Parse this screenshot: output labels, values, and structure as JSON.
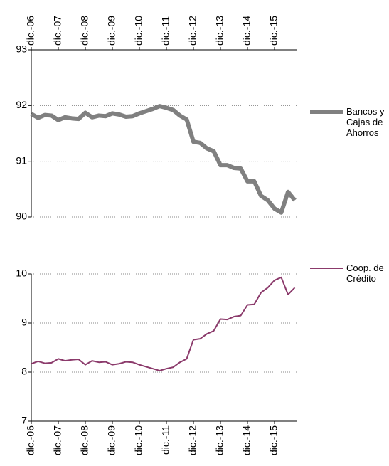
{
  "chart_data": [
    {
      "type": "line",
      "categories": [
        "dic.-06",
        null,
        null,
        null,
        "dic.-07",
        null,
        null,
        null,
        "dic.-08",
        null,
        null,
        null,
        "dic.-09",
        null,
        null,
        null,
        "dic.-10",
        null,
        null,
        null,
        "dic.-11",
        null,
        null,
        null,
        "dic.-12",
        null,
        null,
        null,
        "dic.-13",
        null,
        null,
        null,
        "dic.-14",
        null,
        null,
        null,
        "dic.-15",
        null,
        null,
        null
      ],
      "series": [
        {
          "name": "Bancos y Cajas de Ahorros",
          "color": "#808080",
          "values": [
            91.85,
            91.78,
            91.83,
            91.82,
            91.74,
            91.79,
            91.77,
            91.76,
            91.87,
            91.79,
            91.82,
            91.81,
            91.86,
            91.84,
            91.8,
            91.81,
            91.86,
            91.9,
            91.94,
            91.99,
            91.96,
            91.92,
            91.82,
            91.75,
            91.35,
            91.33,
            91.23,
            91.18,
            90.93,
            90.93,
            90.88,
            90.87,
            90.64,
            90.64,
            90.38,
            90.3,
            90.15,
            90.08,
            90.45,
            90.3
          ]
        }
      ],
      "ylim": [
        90,
        93
      ],
      "yticks": [
        90,
        91,
        92,
        93
      ],
      "grid": true,
      "legend": "right",
      "x_axis": "top"
    },
    {
      "type": "line",
      "categories": [
        "dic.-06",
        null,
        null,
        null,
        "dic.-07",
        null,
        null,
        null,
        "dic.-08",
        null,
        null,
        null,
        "dic.-09",
        null,
        null,
        null,
        "dic.-10",
        null,
        null,
        null,
        "dic.-11",
        null,
        null,
        null,
        "dic.-12",
        null,
        null,
        null,
        "dic.-13",
        null,
        null,
        null,
        "dic.-14",
        null,
        null,
        null,
        "dic.-15",
        null,
        null,
        null
      ],
      "series": [
        {
          "name": "Coop. de Crédito",
          "color": "#8b3a6b",
          "values": [
            8.17,
            8.22,
            8.18,
            8.19,
            8.27,
            8.23,
            8.25,
            8.26,
            8.15,
            8.23,
            8.2,
            8.21,
            8.15,
            8.17,
            8.21,
            8.2,
            8.15,
            8.11,
            8.07,
            8.03,
            8.07,
            8.1,
            8.2,
            8.27,
            8.66,
            8.68,
            8.78,
            8.84,
            9.08,
            9.07,
            9.13,
            9.15,
            9.37,
            9.38,
            9.62,
            9.72,
            9.87,
            9.93,
            9.58,
            9.72
          ]
        }
      ],
      "ylim": [
        7,
        10
      ],
      "yticks": [
        7,
        8,
        9,
        10
      ],
      "grid": true,
      "legend": "right",
      "x_axis": "bottom"
    }
  ]
}
